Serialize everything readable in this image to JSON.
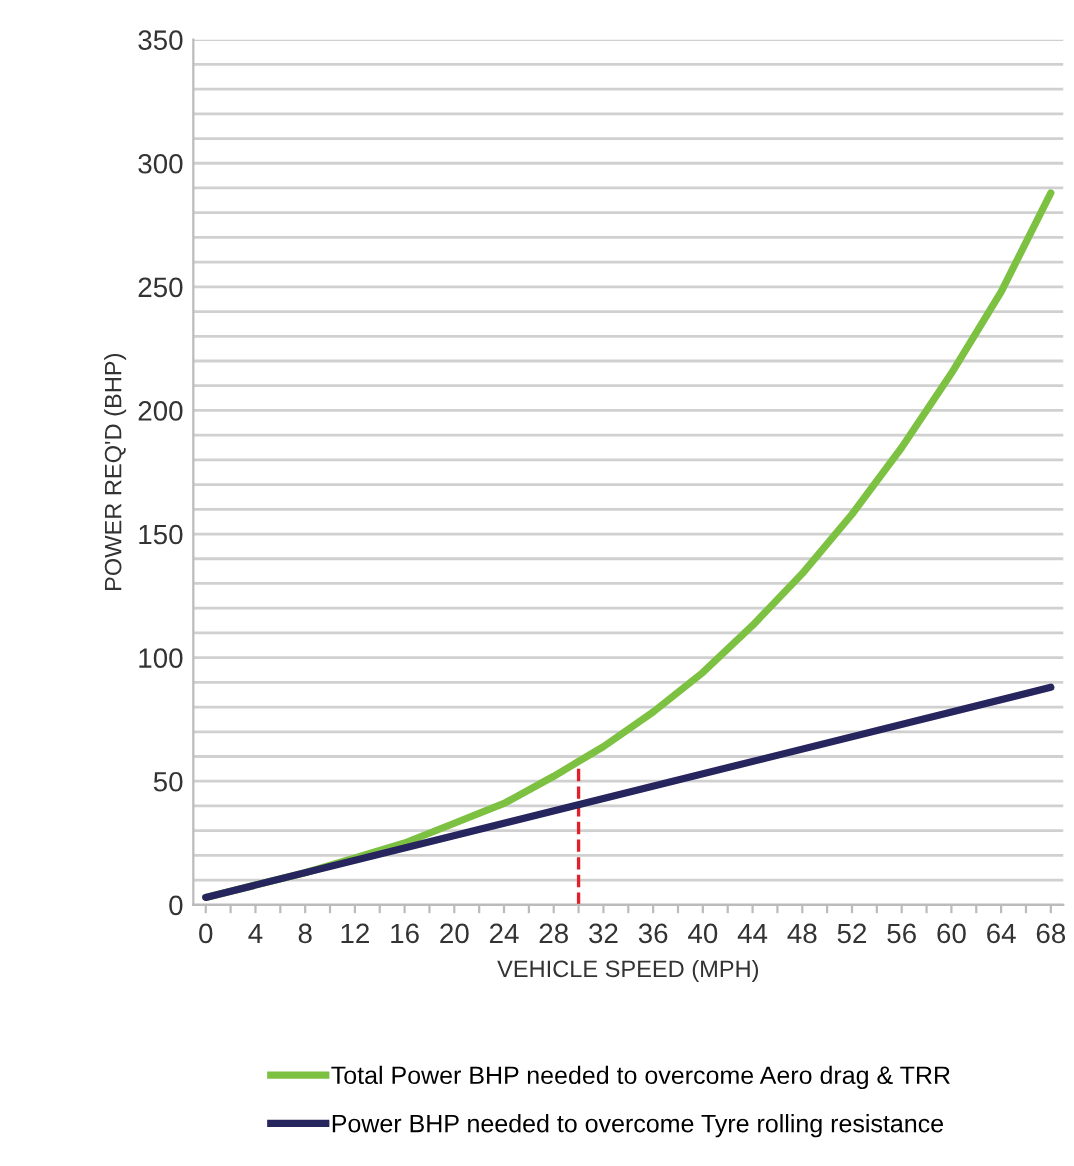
{
  "chart_data": {
    "type": "line",
    "xlabel": "VEHICLE SPEED (MPH)",
    "ylabel": "POWER REQ'D (BHP)",
    "series": [
      {
        "name": "Total Power BHP needed to overcome Aero drag & TRR",
        "color": "#7dc142",
        "x": [
          0,
          4,
          8,
          12,
          16,
          20,
          24,
          28,
          30,
          32,
          36,
          40,
          44,
          48,
          52,
          56,
          60,
          64,
          68
        ],
        "values": [
          3,
          8,
          13,
          19,
          25,
          33,
          41,
          52,
          58,
          64,
          78,
          94,
          113,
          134,
          158,
          185,
          215,
          248,
          288
        ]
      },
      {
        "name": "Power BHP needed to overcome Tyre rolling resistance",
        "color": "#27255e",
        "x": [
          0,
          68
        ],
        "values": [
          3,
          88
        ]
      }
    ],
    "ref_lines": [
      {
        "axis": "x",
        "value": 30,
        "label": null,
        "color": "#e0202a",
        "line_style": "dashed"
      }
    ],
    "xlim": [
      -1,
      69
    ],
    "xticks": [
      0,
      {
        "value": 2,
        "label": null
      },
      4,
      {
        "value": 6,
        "label": null
      },
      8,
      {
        "value": 10,
        "label": null
      },
      12,
      {
        "value": 14,
        "label": null
      },
      16,
      {
        "value": 18,
        "label": null
      },
      20,
      {
        "value": 22,
        "label": null
      },
      24,
      {
        "value": 26,
        "label": null
      },
      28,
      {
        "value": 30,
        "label": null
      },
      32,
      {
        "value": 34,
        "label": null
      },
      36,
      {
        "value": 38,
        "label": null
      },
      40,
      {
        "value": 42,
        "label": null
      },
      44,
      {
        "value": 46,
        "label": null
      },
      48,
      {
        "value": 50,
        "label": null
      },
      52,
      {
        "value": 54,
        "label": null
      },
      56,
      {
        "value": 58,
        "label": null
      },
      60,
      {
        "value": 62,
        "label": null
      },
      64,
      {
        "value": 66,
        "label": null
      },
      68
    ],
    "ylim": [
      0,
      350
    ],
    "yticks": [
      0,
      {
        "value": 10,
        "label": null
      },
      {
        "value": 20,
        "label": null
      },
      {
        "value": 30,
        "label": null
      },
      {
        "value": 40,
        "label": null
      },
      50,
      {
        "value": 60,
        "label": null
      },
      {
        "value": 70,
        "label": null
      },
      {
        "value": 80,
        "label": null
      },
      {
        "value": 90,
        "label": null
      },
      100,
      {
        "value": 110,
        "label": null
      },
      {
        "value": 120,
        "label": null
      },
      {
        "value": 130,
        "label": null
      },
      {
        "value": 140,
        "label": null
      },
      150,
      {
        "value": 160,
        "label": null
      },
      {
        "value": 170,
        "label": null
      },
      {
        "value": 180,
        "label": null
      },
      {
        "value": 190,
        "label": null
      },
      200,
      {
        "value": 210,
        "label": null
      },
      {
        "value": 220,
        "label": null
      },
      {
        "value": 230,
        "label": null
      },
      {
        "value": 240,
        "label": null
      },
      250,
      {
        "value": 260,
        "label": null
      },
      {
        "value": 270,
        "label": null
      },
      {
        "value": 280,
        "label": null
      },
      {
        "value": 290,
        "label": null
      },
      300,
      {
        "value": 310,
        "label": null
      },
      {
        "value": 320,
        "label": null
      },
      {
        "value": 330,
        "label": null
      },
      {
        "value": 340,
        "label": null
      },
      350
    ],
    "grid": "y",
    "legend": "bottom",
    "marker": "none",
    "line_style": "solid"
  }
}
